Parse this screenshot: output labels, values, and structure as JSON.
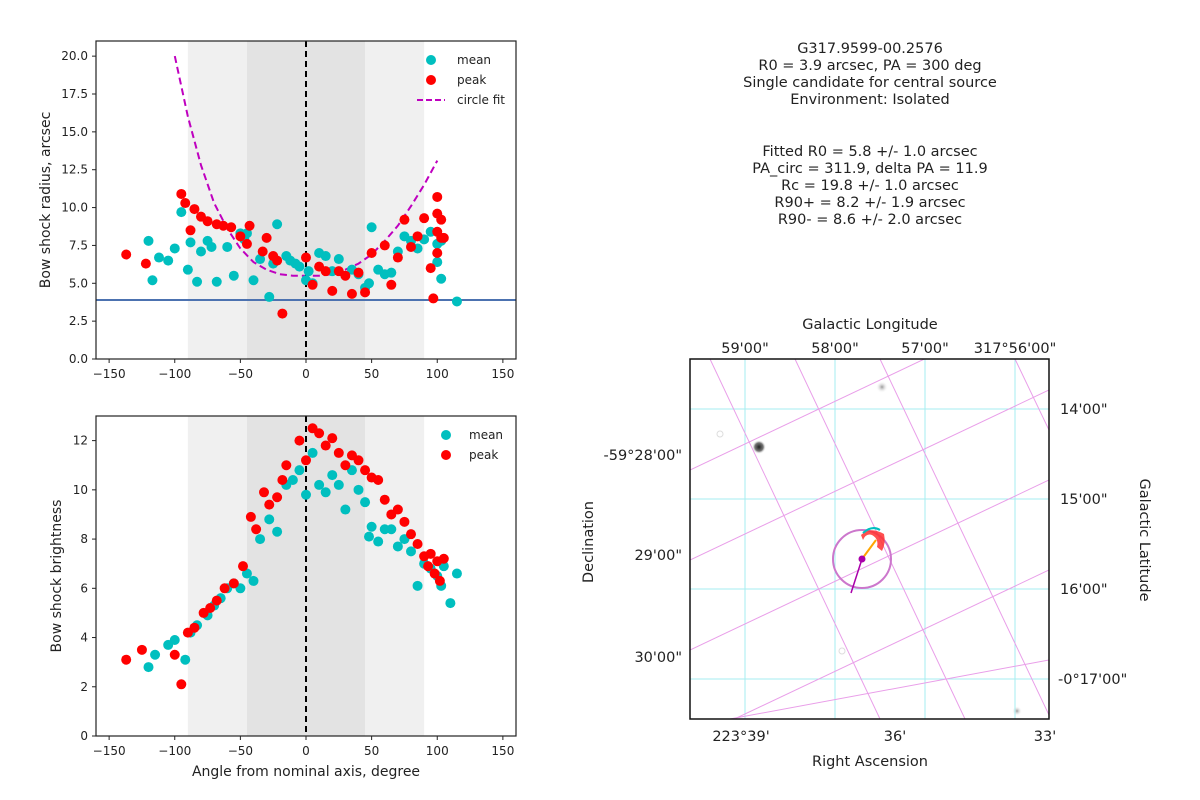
{
  "chart_data": [
    {
      "type": "scatter",
      "ylabel": "Bow shock radius, arcsec",
      "xlabel": "",
      "xlim": [
        -160,
        160
      ],
      "ylim": [
        0,
        21
      ],
      "xticks": [
        -150,
        -100,
        -50,
        0,
        50,
        100,
        150
      ],
      "xtick_labels": [
        "−150",
        "−100",
        "−50",
        "0",
        "50",
        "100",
        "150"
      ],
      "yticks": [
        0,
        2.5,
        5,
        7.5,
        10,
        12.5,
        15,
        17.5,
        20
      ],
      "ytick_labels": [
        "0.0",
        "2.5",
        "5.0",
        "7.5",
        "10.0",
        "12.5",
        "15.0",
        "17.5",
        "20.0"
      ],
      "bands": [
        {
          "from": -90,
          "to": 90,
          "color": "#f0f0f0"
        },
        {
          "from": -45,
          "to": 45,
          "color": "#e3e3e3"
        }
      ],
      "vline": {
        "x": 0,
        "color": "#000000",
        "style": "dashed"
      },
      "hline": {
        "y": 3.9,
        "color": "#4c72b0"
      },
      "legend": {
        "position": "top-right",
        "labels": [
          "mean",
          "peak",
          "circle fit"
        ]
      },
      "series": [
        {
          "name": "mean",
          "color": "#00bfbf",
          "kind": "points",
          "x": [
            -120,
            -117,
            -112,
            -105,
            -100,
            -95,
            -90,
            -88,
            -83,
            -80,
            -75,
            -72,
            -68,
            -60,
            -55,
            -50,
            -47,
            -45,
            -40,
            -35,
            -28,
            -25,
            -22,
            -15,
            -12,
            -8,
            -5,
            0,
            2,
            5,
            10,
            15,
            20,
            25,
            35,
            40,
            45,
            48,
            50,
            55,
            60,
            65,
            70,
            75,
            80,
            85,
            90,
            95,
            100,
            100,
            103,
            103,
            115
          ],
          "y": [
            7.8,
            5.2,
            6.7,
            6.5,
            7.3,
            9.7,
            5.9,
            7.7,
            5.1,
            7.1,
            7.8,
            7.4,
            5.1,
            7.4,
            5.5,
            8.3,
            7.9,
            8.3,
            5.2,
            6.6,
            4.1,
            6.3,
            8.9,
            6.8,
            6.5,
            6.3,
            6.1,
            5.2,
            5.8,
            5.0,
            7.0,
            6.8,
            5.8,
            6.6,
            5.9,
            5.6,
            4.7,
            5.0,
            8.7,
            5.9,
            5.6,
            5.7,
            7.1,
            8.1,
            7.8,
            7.3,
            7.9,
            8.4,
            6.4,
            7.6,
            5.3,
            7.8,
            3.8
          ]
        },
        {
          "name": "peak",
          "color": "#ff0000",
          "kind": "points",
          "x": [
            -137,
            -122,
            -95,
            -92,
            -88,
            -85,
            -80,
            -75,
            -68,
            -63,
            -57,
            -50,
            -45,
            -43,
            -33,
            -30,
            -25,
            -22,
            -18,
            0,
            5,
            10,
            15,
            20,
            25,
            30,
            35,
            40,
            45,
            50,
            60,
            65,
            70,
            75,
            80,
            85,
            90,
            95,
            97,
            100,
            100,
            100,
            100,
            103,
            103,
            105
          ],
          "y": [
            6.9,
            6.3,
            10.9,
            10.3,
            8.5,
            9.9,
            9.4,
            9.1,
            8.9,
            8.8,
            8.7,
            8.1,
            7.6,
            8.8,
            7.1,
            8.0,
            6.8,
            6.5,
            3.0,
            6.7,
            4.9,
            6.1,
            5.8,
            4.5,
            5.8,
            5.5,
            4.3,
            5.7,
            4.4,
            7.0,
            7.5,
            4.9,
            6.7,
            9.2,
            7.4,
            8.1,
            9.3,
            6.0,
            4.0,
            9.6,
            10.7,
            8.4,
            7.0,
            9.2,
            8.0,
            8.0
          ]
        },
        {
          "name": "circle fit",
          "color": "#bf00bf",
          "kind": "dashed-curve",
          "x": [
            -100,
            -90,
            -80,
            -70,
            -60,
            -50,
            -40,
            -30,
            -20,
            -10,
            0,
            10,
            20,
            30,
            40,
            50,
            60,
            70,
            80,
            90,
            100
          ],
          "y": [
            20.0,
            16.0,
            12.8,
            10.3,
            8.6,
            7.3,
            6.4,
            5.9,
            5.6,
            5.5,
            5.5,
            5.5,
            5.6,
            5.9,
            6.3,
            6.9,
            7.8,
            8.8,
            10.1,
            11.5,
            13.1
          ]
        }
      ]
    },
    {
      "type": "scatter",
      "ylabel": "Bow shock brightness",
      "xlabel": "Angle from nominal axis, degree",
      "xlim": [
        -160,
        160
      ],
      "ylim": [
        0,
        13
      ],
      "xticks": [
        -150,
        -100,
        -50,
        0,
        50,
        100,
        150
      ],
      "xtick_labels": [
        "−150",
        "−100",
        "−50",
        "0",
        "50",
        "100",
        "150"
      ],
      "yticks": [
        0,
        2,
        4,
        6,
        8,
        10,
        12
      ],
      "ytick_labels": [
        "0",
        "2",
        "4",
        "6",
        "8",
        "10",
        "12"
      ],
      "bands": [
        {
          "from": -90,
          "to": 90,
          "color": "#f0f0f0"
        },
        {
          "from": -45,
          "to": 45,
          "color": "#e3e3e3"
        }
      ],
      "vline": {
        "x": 0,
        "color": "#000000",
        "style": "dashed"
      },
      "legend": {
        "position": "top-right",
        "labels": [
          "mean",
          "peak"
        ]
      },
      "series": [
        {
          "name": "mean",
          "color": "#00bfbf",
          "kind": "points",
          "x": [
            -120,
            -115,
            -105,
            -100,
            -92,
            -88,
            -83,
            -75,
            -70,
            -65,
            -60,
            -55,
            -50,
            -45,
            -40,
            -35,
            -28,
            -22,
            -15,
            -10,
            -5,
            0,
            5,
            10,
            15,
            20,
            25,
            30,
            35,
            40,
            45,
            48,
            50,
            55,
            60,
            65,
            70,
            75,
            80,
            85,
            90,
            95,
            100,
            103,
            105,
            110,
            115
          ],
          "y": [
            2.8,
            3.3,
            3.7,
            3.9,
            3.1,
            4.2,
            4.5,
            4.9,
            5.3,
            5.6,
            6.0,
            6.2,
            6.0,
            6.6,
            6.3,
            8.0,
            8.8,
            8.3,
            10.2,
            10.4,
            10.8,
            9.8,
            11.5,
            10.2,
            9.9,
            10.6,
            10.2,
            9.2,
            10.8,
            10.0,
            9.5,
            8.1,
            8.5,
            7.9,
            8.4,
            8.4,
            7.7,
            8.0,
            7.5,
            6.1,
            7.0,
            6.8,
            6.5,
            6.1,
            6.9,
            5.4,
            6.6
          ]
        },
        {
          "name": "peak",
          "color": "#ff0000",
          "kind": "points",
          "x": [
            -137,
            -125,
            -100,
            -95,
            -90,
            -85,
            -78,
            -73,
            -68,
            -62,
            -55,
            -48,
            -42,
            -38,
            -32,
            -28,
            -22,
            -18,
            -15,
            -5,
            0,
            5,
            10,
            15,
            20,
            25,
            30,
            35,
            40,
            45,
            50,
            55,
            60,
            65,
            70,
            75,
            80,
            85,
            90,
            93,
            95,
            98,
            100,
            102,
            105
          ],
          "y": [
            3.1,
            3.5,
            3.3,
            2.1,
            4.2,
            4.4,
            5.0,
            5.2,
            5.5,
            6.0,
            6.2,
            6.9,
            8.9,
            8.4,
            9.9,
            9.4,
            9.7,
            10.4,
            11.0,
            12.0,
            11.2,
            12.5,
            12.3,
            11.8,
            12.1,
            11.5,
            11.0,
            11.4,
            11.2,
            10.8,
            10.5,
            10.4,
            9.6,
            9.0,
            9.2,
            8.7,
            8.2,
            7.8,
            7.3,
            6.9,
            7.4,
            6.6,
            7.1,
            6.3,
            7.2
          ]
        }
      ]
    }
  ],
  "info_block_1": [
    "G317.9599-00.2576",
    "R0 = 3.9 arcsec, PA = 300 deg",
    "Single candidate for central source",
    "Environment: Isolated"
  ],
  "info_block_2": [
    "Fitted R0 = 5.8 +/- 1.0 arcsec",
    "PA_circ = 311.9, delta PA = 11.9",
    "Rc = 19.8 +/- 1.0 arcsec",
    "R90+ = 8.2 +/- 1.9 arcsec",
    "R90- = 8.6 +/- 2.0 arcsec"
  ],
  "sky_map": {
    "top_axis_title": "Galactic Longitude",
    "top_ticks": [
      "59'00\"",
      "58'00\"",
      "57'00\"",
      "317°56'00\""
    ],
    "right_axis_title": "Galactic Latitude",
    "right_ticks": [
      "14'00\"",
      "15'00\"",
      "16'00\"",
      "-0°17'00\""
    ],
    "left_axis_title": "Declination",
    "left_ticks": [
      "-59°28'00\"",
      "29'00\"",
      "30'00\""
    ],
    "bottom_axis_title": "Right Ascension",
    "bottom_ticks": [
      "223°39'",
      "36'",
      "33'"
    ],
    "grid_color_radec": "#a6eef0",
    "grid_color_galactic": "#e99ee9",
    "circle_color": "#cc77cc",
    "center_marker_color": "#aa00aa"
  }
}
